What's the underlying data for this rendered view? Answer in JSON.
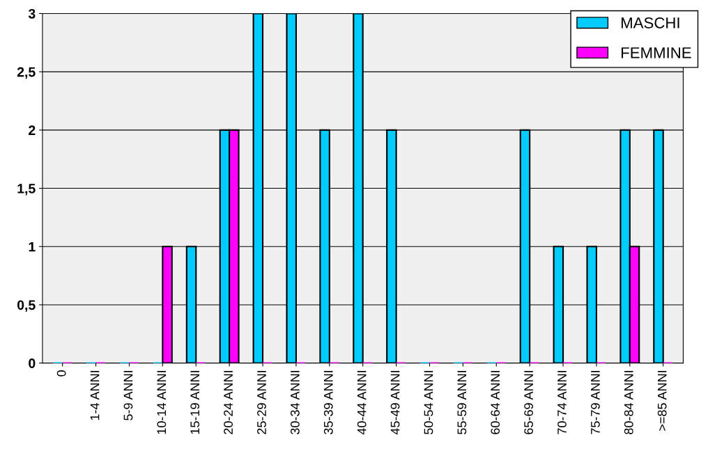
{
  "chart_data": {
    "type": "bar",
    "categories": [
      "0",
      "1-4 ANNI",
      "5-9 ANNI",
      "10-14 ANNI",
      "15-19 ANNI",
      "20-24 ANNI",
      "25-29 ANNI",
      "30-34 ANNI",
      "35-39 ANNI",
      "40-44 ANNI",
      "45-49 ANNI",
      "50-54 ANNI",
      "55-59 ANNI",
      "60-64 ANNI",
      "65-69 ANNI",
      "70-74 ANNI",
      "75-79 ANNI",
      "80-84 ANNI",
      ">=85 ANNI"
    ],
    "series": [
      {
        "name": "MASCHI",
        "color": "#00ccff",
        "values": [
          0,
          0,
          0,
          0,
          1,
          2,
          3,
          3,
          2,
          3,
          2,
          0,
          0,
          0,
          2,
          1,
          1,
          2,
          2
        ]
      },
      {
        "name": "FEMMINE",
        "color": "#ff00ff",
        "values": [
          0,
          0,
          0,
          1,
          0,
          2,
          0,
          0,
          0,
          0,
          0,
          0,
          0,
          0,
          0,
          0,
          0,
          1,
          0
        ]
      }
    ],
    "ylim": [
      0,
      3
    ],
    "yticks": [
      0,
      {
        "value": 0.5,
        "label": "0,5"
      },
      1,
      {
        "value": 1.5,
        "label": "1,5"
      },
      2,
      {
        "value": 2.5,
        "label": "2,5"
      },
      3
    ],
    "grid": "y",
    "legend": "top right"
  }
}
